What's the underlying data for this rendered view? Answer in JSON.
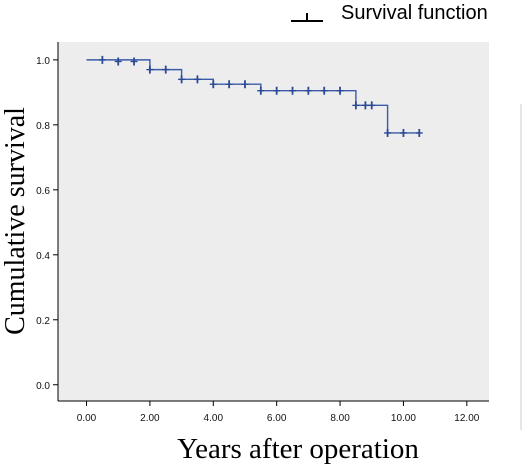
{
  "chart_data": {
    "type": "line",
    "title": "",
    "xlabel": "Years after operation",
    "ylabel": "Cumulative survival",
    "xlim": [
      -0.9,
      12.7
    ],
    "ylim": [
      -0.05,
      1.055
    ],
    "grid": false,
    "legend_position": "top-right",
    "x_ticks": [
      0,
      2,
      4,
      6,
      8,
      10,
      12
    ],
    "x_tick_labels": [
      "0.00",
      "2.00",
      "4.00",
      "6.00",
      "8.00",
      "10.00",
      "12.00"
    ],
    "y_ticks": [
      0,
      0.2,
      0.4,
      0.6,
      0.8,
      1.0
    ],
    "y_tick_labels": [
      "0.0",
      "0.2",
      "0.4",
      "0.6",
      "0.8",
      "1.0"
    ],
    "colors": {
      "plot_background": "#ededed",
      "line": "#3a5ba9",
      "censor_mark": "#2c4a93",
      "axis": "#000000"
    },
    "series": [
      {
        "name": "Survival function",
        "steps": [
          {
            "x": 0.0,
            "y": 1.0
          },
          {
            "x": 2.0,
            "y": 0.97
          },
          {
            "x": 3.0,
            "y": 0.94
          },
          {
            "x": 4.0,
            "y": 0.925
          },
          {
            "x": 5.5,
            "y": 0.905
          },
          {
            "x": 8.5,
            "y": 0.86
          },
          {
            "x": 9.5,
            "y": 0.775
          }
        ],
        "end_x": 10.5,
        "censored": [
          {
            "x": 0.5,
            "y": 1.0
          },
          {
            "x": 1.0,
            "y": 0.995
          },
          {
            "x": 1.5,
            "y": 0.995
          },
          {
            "x": 2.0,
            "y": 0.97
          },
          {
            "x": 2.5,
            "y": 0.97
          },
          {
            "x": 3.0,
            "y": 0.94
          },
          {
            "x": 3.5,
            "y": 0.94
          },
          {
            "x": 4.0,
            "y": 0.925
          },
          {
            "x": 4.5,
            "y": 0.925
          },
          {
            "x": 5.0,
            "y": 0.925
          },
          {
            "x": 5.5,
            "y": 0.905
          },
          {
            "x": 6.0,
            "y": 0.905
          },
          {
            "x": 6.5,
            "y": 0.905
          },
          {
            "x": 7.0,
            "y": 0.905
          },
          {
            "x": 7.5,
            "y": 0.905
          },
          {
            "x": 8.0,
            "y": 0.905
          },
          {
            "x": 8.5,
            "y": 0.86
          },
          {
            "x": 8.8,
            "y": 0.86
          },
          {
            "x": 9.0,
            "y": 0.86
          },
          {
            "x": 9.5,
            "y": 0.775
          },
          {
            "x": 10.0,
            "y": 0.775
          },
          {
            "x": 10.5,
            "y": 0.775
          }
        ]
      }
    ]
  },
  "legend": {
    "label": "Survival function"
  }
}
